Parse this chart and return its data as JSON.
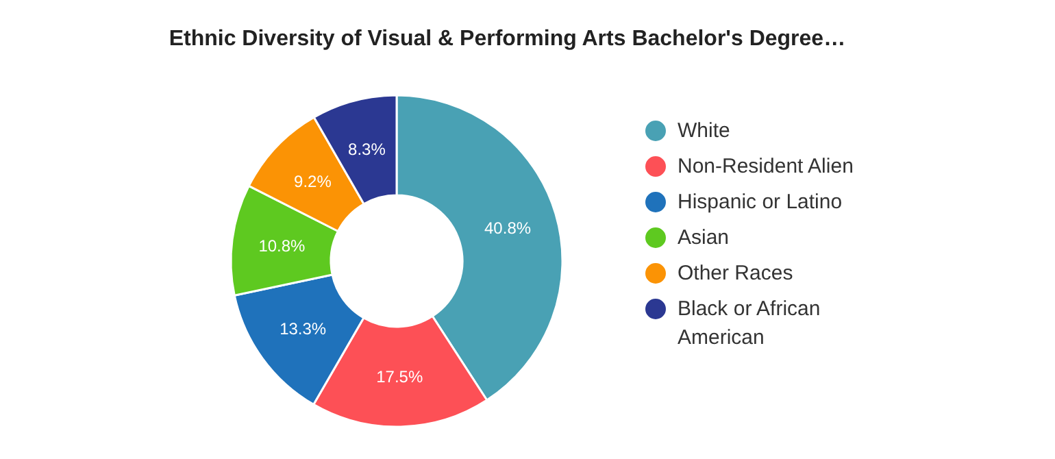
{
  "chart_data": {
    "type": "donut",
    "title": "Ethnic Diversity of Visual & Performing Arts Bachelor's Degree…",
    "categories": [
      "White",
      "Non-Resident Alien",
      "Hispanic or Latino",
      "Asian",
      "Other Races",
      "Black or African American"
    ],
    "values": [
      40.8,
      17.5,
      13.3,
      10.8,
      9.2,
      8.3
    ],
    "colors": [
      "#49a1b4",
      "#fd5056",
      "#1f72bb",
      "#5ec920",
      "#fb9305",
      "#2b3892"
    ],
    "value_labels": [
      "40.8%",
      "17.5%",
      "13.3%",
      "10.8%",
      "9.2%",
      "8.3%"
    ],
    "legend": "right"
  }
}
